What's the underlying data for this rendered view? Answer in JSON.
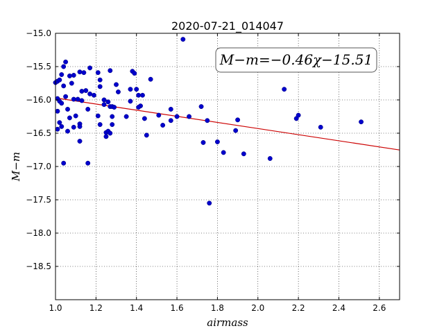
{
  "chart_data": {
    "type": "scatter",
    "title": "2020-07-21_014047",
    "xlabel": "airmass",
    "ylabel": "M−m",
    "xlim": [
      1.0,
      2.7
    ],
    "ylim": [
      -15.0,
      -19.0
    ],
    "y_inverted": true,
    "grid": true,
    "x_ticks": [
      "1.0",
      "1.2",
      "1.4",
      "1.6",
      "1.8",
      "2.0",
      "2.2",
      "2.4",
      "2.6"
    ],
    "y_ticks": [
      "−15.0",
      "−15.5",
      "−16.0",
      "−16.5",
      "−17.0",
      "−17.5",
      "−18.0",
      "−18.5"
    ],
    "annotation": "M−m=−0.46χ−15.51",
    "fit": {
      "slope": -0.46,
      "intercept": -15.51,
      "color": "#cc0000"
    },
    "marker_color": "#0000cc",
    "points": [
      [
        1.0,
        -15.74
      ],
      [
        1.01,
        -15.72
      ],
      [
        1.02,
        -15.7
      ],
      [
        1.03,
        -15.62
      ],
      [
        1.05,
        -15.43
      ],
      [
        1.04,
        -15.5
      ],
      [
        1.07,
        -15.64
      ],
      [
        1.09,
        -15.63
      ],
      [
        1.12,
        -15.58
      ],
      [
        1.14,
        -15.59
      ],
      [
        1.17,
        -15.52
      ],
      [
        1.21,
        -15.59
      ],
      [
        1.27,
        -15.56
      ],
      [
        1.38,
        -15.57
      ],
      [
        1.39,
        -15.6
      ],
      [
        1.04,
        -15.79
      ],
      [
        1.08,
        -15.75
      ],
      [
        1.22,
        -15.7
      ],
      [
        1.22,
        -15.8
      ],
      [
        1.13,
        -15.87
      ],
      [
        1.15,
        -15.86
      ],
      [
        1.17,
        -15.91
      ],
      [
        1.19,
        -15.93
      ],
      [
        1.3,
        -15.77
      ],
      [
        1.31,
        -15.88
      ],
      [
        1.37,
        -15.84
      ],
      [
        1.4,
        -15.84
      ],
      [
        1.41,
        -15.93
      ],
      [
        1.43,
        -15.93
      ],
      [
        1.47,
        -15.69
      ],
      [
        1.01,
        -15.98
      ],
      [
        1.02,
        -16.02
      ],
      [
        1.03,
        -16.05
      ],
      [
        1.05,
        -15.95
      ],
      [
        1.09,
        -15.99
      ],
      [
        1.11,
        -15.99
      ],
      [
        1.13,
        -16.01
      ],
      [
        1.24,
        -16.0
      ],
      [
        1.26,
        -16.03
      ],
      [
        1.37,
        -16.02
      ],
      [
        1.42,
        -16.09
      ],
      [
        1.41,
        -16.11
      ],
      [
        1.24,
        -16.07
      ],
      [
        1.27,
        -16.1
      ],
      [
        1.28,
        -16.1
      ],
      [
        1.29,
        -16.11
      ],
      [
        1.01,
        -16.17
      ],
      [
        1.06,
        -16.14
      ],
      [
        1.16,
        -16.14
      ],
      [
        1.07,
        -16.27
      ],
      [
        1.1,
        -16.24
      ],
      [
        1.21,
        -16.24
      ],
      [
        1.28,
        -16.25
      ],
      [
        1.35,
        -16.25
      ],
      [
        1.44,
        -16.28
      ],
      [
        1.51,
        -16.23
      ],
      [
        1.57,
        -16.14
      ],
      [
        1.6,
        -16.25
      ],
      [
        1.66,
        -16.25
      ],
      [
        1.72,
        -16.1
      ],
      [
        1.75,
        -16.31
      ],
      [
        1.57,
        -16.31
      ],
      [
        1.53,
        -16.38
      ],
      [
        1.02,
        -16.34
      ],
      [
        1.03,
        -16.4
      ],
      [
        1.09,
        -16.41
      ],
      [
        1.12,
        -16.36
      ],
      [
        1.12,
        -16.4
      ],
      [
        1.22,
        -16.37
      ],
      [
        1.28,
        -16.37
      ],
      [
        1.06,
        -16.47
      ],
      [
        1.01,
        -16.44
      ],
      [
        1.25,
        -16.49
      ],
      [
        1.26,
        -16.47
      ],
      [
        1.27,
        -16.5
      ],
      [
        1.25,
        -16.55
      ],
      [
        1.45,
        -16.53
      ],
      [
        1.12,
        -16.62
      ],
      [
        1.73,
        -16.64
      ],
      [
        1.8,
        -16.63
      ],
      [
        1.89,
        -16.46
      ],
      [
        1.9,
        -16.3
      ],
      [
        1.83,
        -16.79
      ],
      [
        1.93,
        -16.81
      ],
      [
        2.06,
        -16.88
      ],
      [
        2.13,
        -15.84
      ],
      [
        2.19,
        -16.28
      ],
      [
        2.2,
        -16.23
      ],
      [
        2.31,
        -16.41
      ],
      [
        2.51,
        -16.33
      ],
      [
        1.04,
        -16.95
      ],
      [
        1.16,
        -16.95
      ],
      [
        1.63,
        -15.09
      ],
      [
        1.76,
        -17.55
      ]
    ]
  }
}
